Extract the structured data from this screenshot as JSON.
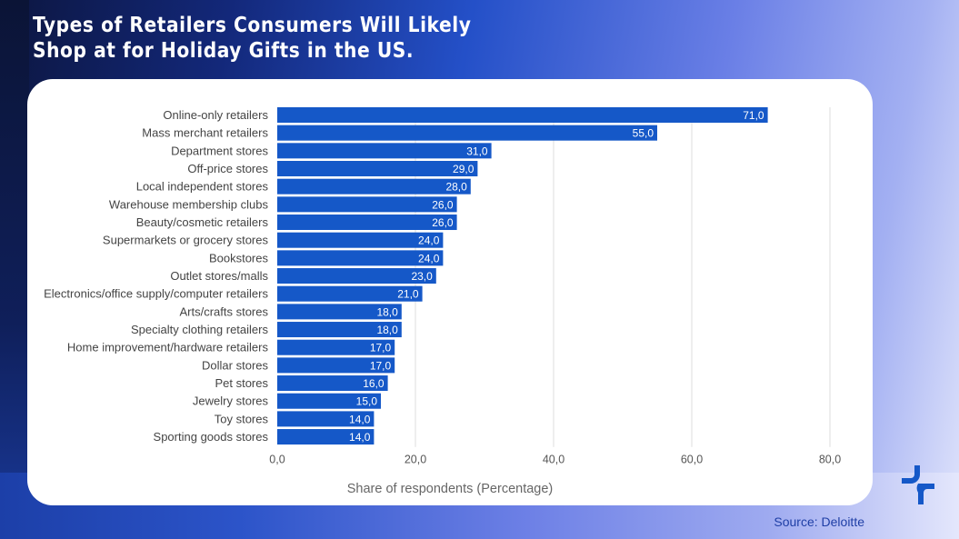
{
  "title_lines": [
    "Types of Retailers Consumers Will Likely",
    "Shop at for Holiday Gifts in the US."
  ],
  "source": "Source: Deloitte",
  "logo_icon": "brand-logo-icon",
  "colors": {
    "bar": "#1558c8",
    "bar_label": "#ffffff",
    "category_label": "#444444",
    "grid": "#dddddd",
    "source_text": "#1f3fa6",
    "logo": "#1558c8"
  },
  "chart_data": {
    "type": "bar",
    "orientation": "horizontal",
    "title": "Types of Retailers Consumers Will Likely Shop at for Holiday Gifts in the US.",
    "xlabel": "Share of respondents (Percentage)",
    "ylabel": "",
    "xlim": [
      0,
      80
    ],
    "xticks": [
      0,
      20,
      40,
      60,
      80
    ],
    "xtick_labels": [
      "0,0",
      "20,0",
      "40,0",
      "60,0",
      "80,0"
    ],
    "grid": "vertical",
    "legend": "none",
    "categories": [
      "Online-only retailers",
      "Mass merchant retailers",
      "Department stores",
      "Off-price stores",
      "Local independent stores",
      "Warehouse membership clubs",
      "Beauty/cosmetic retailers",
      "Supermarkets or grocery stores",
      "Bookstores",
      "Outlet stores/malls",
      "Electronics/office supply/computer retailers",
      "Arts/crafts stores",
      "Specialty clothing retailers",
      "Home improvement/hardware retailers",
      "Dollar stores",
      "Pet stores",
      "Jewelry stores",
      "Toy stores",
      "Sporting goods stores"
    ],
    "values": [
      71,
      55,
      31,
      29,
      28,
      26,
      26,
      24,
      24,
      23,
      21,
      18,
      18,
      17,
      17,
      16,
      15,
      14,
      14
    ],
    "value_labels": [
      "71,0",
      "55,0",
      "31,0",
      "29,0",
      "28,0",
      "26,0",
      "26,0",
      "24,0",
      "24,0",
      "23,0",
      "21,0",
      "18,0",
      "18,0",
      "17,0",
      "17,0",
      "16,0",
      "15,0",
      "14,0",
      "14,0"
    ]
  }
}
